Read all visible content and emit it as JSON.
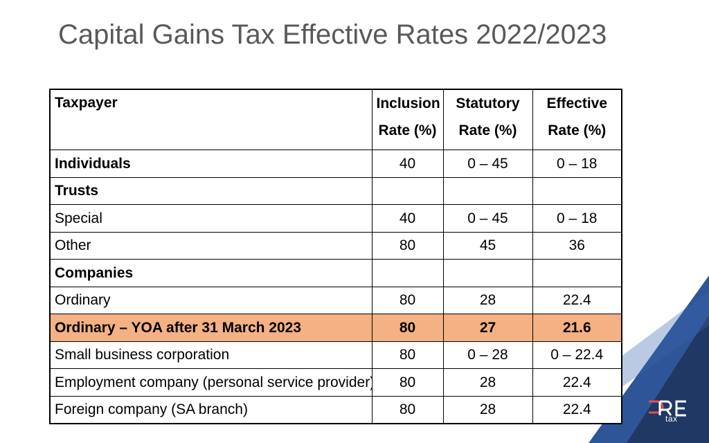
{
  "slide": {
    "title": "Capital Gains Tax Effective Rates 2022/2023"
  },
  "brand": {
    "logo_word": "tax",
    "logo_letters": "ORE",
    "colors": {
      "navy": "#1f3864",
      "blue": "#2e5597",
      "lightblue": "#3a67b0",
      "white": "#ffffff"
    }
  },
  "table": {
    "headers": {
      "taxpayer": "Taxpayer",
      "inclusion_line1": "Inclusion",
      "inclusion_line2": "Rate (%)",
      "statutory_line1": "Statutory",
      "statutory_line2": "Rate (%)",
      "effective_line1": "Effective",
      "effective_line2": "Rate (%)"
    },
    "rows": [
      {
        "label": "Individuals",
        "inclusion": "40",
        "statutory": "0 – 45",
        "effective": "0 – 18"
      },
      {
        "label": "Trusts",
        "inclusion": "",
        "statutory": "",
        "effective": ""
      },
      {
        "label": "Special",
        "inclusion": "40",
        "statutory": "0 – 45",
        "effective": "0 – 18"
      },
      {
        "label": "Other",
        "inclusion": "80",
        "statutory": "45",
        "effective": "36"
      },
      {
        "label": "Companies",
        "inclusion": "",
        "statutory": "",
        "effective": ""
      },
      {
        "label": "Ordinary",
        "inclusion": "80",
        "statutory": "28",
        "effective": "22.4"
      },
      {
        "label": "Ordinary – YOA after 31 March 2023",
        "inclusion": "80",
        "statutory": "27",
        "effective": "21.6"
      },
      {
        "label": "Small business corporation",
        "inclusion": "80",
        "statutory": "0 – 28",
        "effective": "0 – 22.4"
      },
      {
        "label": "Employment company (personal service provider)",
        "inclusion": "80",
        "statutory": "28",
        "effective": "22.4"
      },
      {
        "label": "Foreign company (SA branch)",
        "inclusion": "80",
        "statutory": "28",
        "effective": "22.4"
      }
    ],
    "highlight_color": "#f4b183"
  }
}
